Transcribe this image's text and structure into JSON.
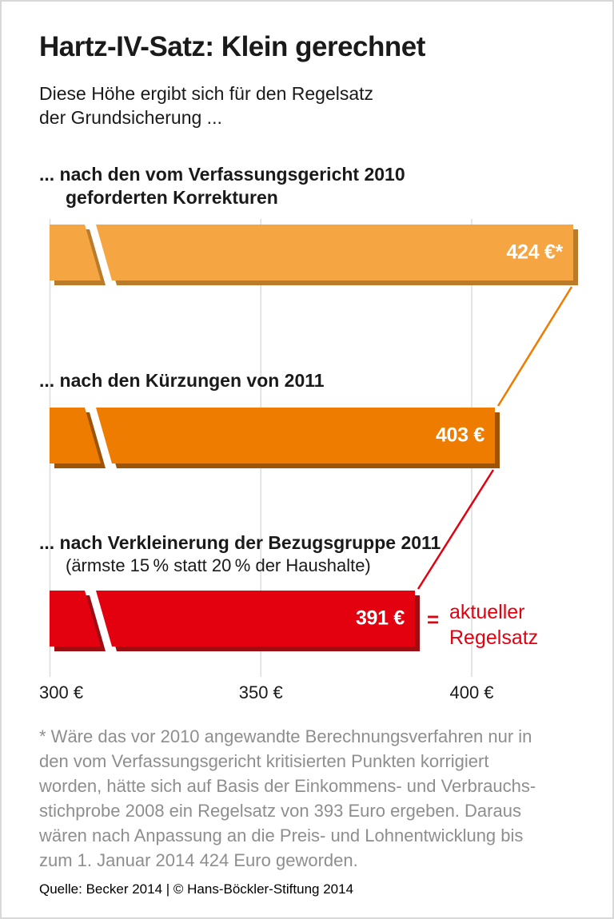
{
  "header": {
    "title": "Hartz-IV-Satz: Klein gerechnet",
    "subtitle": "Diese Höhe ergibt sich für den Regelsatz\nder Grundsicherung ..."
  },
  "chart_data": {
    "type": "bar",
    "orientation": "horizontal",
    "unit": "€",
    "xlim": [
      300,
      433
    ],
    "grid": true,
    "axis_break": true,
    "x_ticks": [
      {
        "value": 300,
        "label": "300 €"
      },
      {
        "value": 350,
        "label": "350 €"
      },
      {
        "value": 400,
        "label": "400 €"
      }
    ],
    "bars": [
      {
        "label": "... nach den vom Verfassungsgericht 2010",
        "label2": "geforderten Korrekturen",
        "sublabel": "",
        "value": 424,
        "value_label": "424 €*",
        "color": "#F5A643",
        "shadow_color": "#BA7B2B"
      },
      {
        "label": "... nach den Kürzungen von 2011",
        "label2": "",
        "sublabel": "",
        "value": 403,
        "value_label": "403 €",
        "color": "#EE7C00",
        "shadow_color": "#9D5407"
      },
      {
        "label": "... nach Verkleinerung der Bezugsgruppe 2011",
        "label2": "",
        "sublabel": "(ärmste 15 % statt 20 % der Haushalte)",
        "value": 391,
        "value_label": "391 €",
        "color": "#E3000F",
        "shadow_color": "#9E0D12"
      }
    ],
    "connectors": [
      {
        "from": 0,
        "to": 1,
        "color": "#EE7C00"
      },
      {
        "from": 1,
        "to": 2,
        "color": "#E3000F"
      }
    ],
    "annotation": {
      "symbol": "=",
      "text": "aktueller\nRegelsatz",
      "color": "#E3000F"
    }
  },
  "footer": {
    "footnote_lines": [
      "* Wäre das vor 2010 angewandte Berechnungsverfahren nur in",
      "den vom Verfassungsgericht kritisierten Punkten korrigiert",
      "worden, hätte sich auf Basis der Einkommens- und Verbrauchs-",
      "stichprobe 2008 ein Regelsatz von 393 Euro ergeben. Daraus",
      "wären nach Anpassung an die Preis- und Lohnentwicklung bis",
      "zum 1. Januar 2014 424 Euro geworden."
    ],
    "source": "Quelle: Becker 2014 | © Hans-Böckler-Stiftung 2014"
  },
  "colors": {
    "text": "#1A1A1A",
    "footnote": "#8E8E8E",
    "gridline": "#DCDCDC",
    "frame": "#D8D8D8",
    "background": "#FFFFFF"
  }
}
